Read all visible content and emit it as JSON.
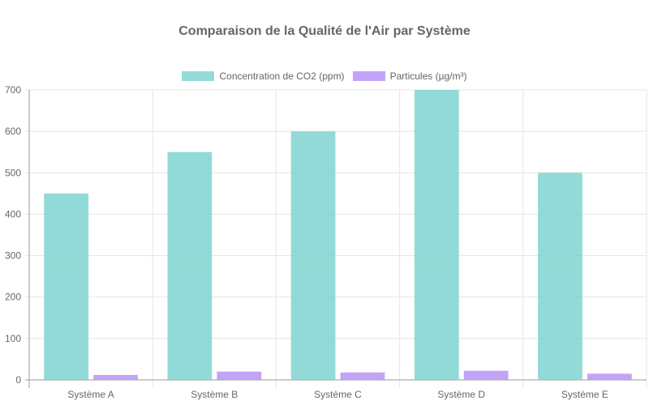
{
  "chart_data": {
    "type": "bar",
    "title": "Comparaison de la Qualité de l'Air par Système",
    "categories": [
      "Système A",
      "Système B",
      "Système C",
      "Système D",
      "Système E"
    ],
    "series": [
      {
        "name": "Concentration de CO2 (ppm)",
        "color": "#7fd3d0",
        "values": [
          450,
          550,
          600,
          700,
          500
        ]
      },
      {
        "name": "Particules (µg/m³)",
        "color": "#b794f6",
        "values": [
          12,
          20,
          18,
          22,
          15
        ]
      }
    ],
    "xlabel": "",
    "ylabel": "",
    "ylim": [
      0,
      700
    ],
    "yticks": [
      0,
      100,
      200,
      300,
      400,
      500,
      600,
      700
    ],
    "grid": true,
    "legend_position": "top"
  },
  "legend": {
    "items": [
      {
        "label": "Concentration de CO2 (ppm)",
        "color": "#94dad7"
      },
      {
        "label": "Particules (µg/m³)",
        "color": "#c3a4fb"
      }
    ]
  }
}
